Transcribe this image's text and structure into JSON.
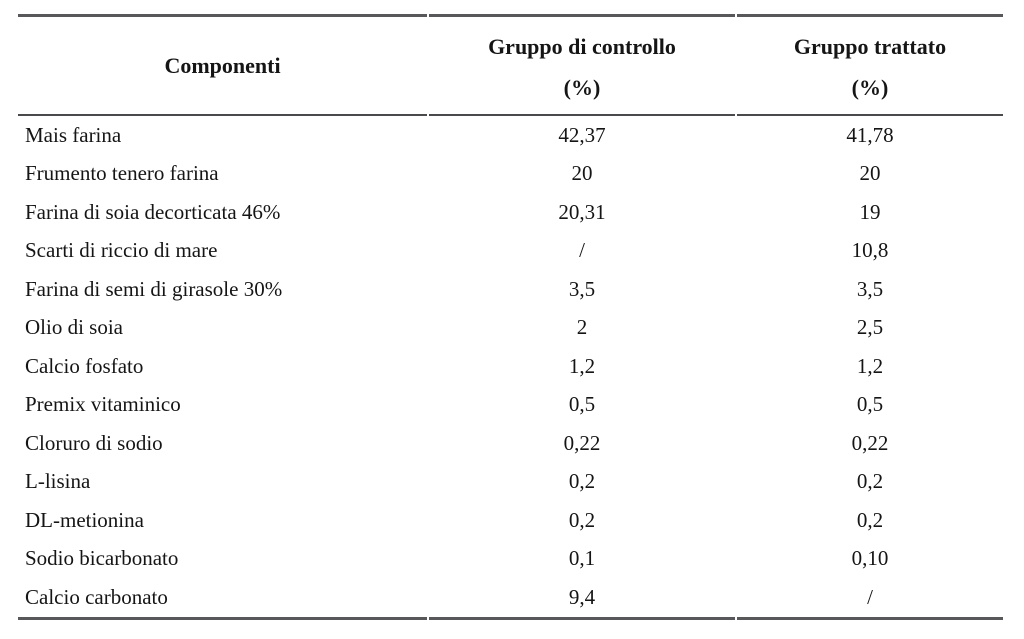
{
  "table": {
    "rule_color": "#58585a",
    "text_color": "#151515",
    "headers": {
      "component": "Componenti",
      "control_line1": "Gruppo di controllo",
      "control_line2": "(%)",
      "treated_line1": "Gruppo trattato",
      "treated_line2": "(%)"
    },
    "rows": [
      {
        "name": "Mais farina",
        "control": "42,37",
        "treated": "41,78"
      },
      {
        "name": "Frumento tenero farina",
        "control": "20",
        "treated": "20"
      },
      {
        "name": "Farina di soia decorticata 46%",
        "control": "20,31",
        "treated": "19"
      },
      {
        "name": "Scarti di riccio di mare",
        "control": "/",
        "treated": "10,8"
      },
      {
        "name": "Farina di semi di girasole 30%",
        "control": "3,5",
        "treated": "3,5"
      },
      {
        "name": "Olio di soia",
        "control": "2",
        "treated": "2,5"
      },
      {
        "name": "Calcio fosfato",
        "control": "1,2",
        "treated": "1,2"
      },
      {
        "name": "Premix vitaminico",
        "control": "0,5",
        "treated": "0,5"
      },
      {
        "name": "Cloruro di sodio",
        "control": "0,22",
        "treated": "0,22"
      },
      {
        "name": "L-lisina",
        "control": "0,2",
        "treated": "0,2"
      },
      {
        "name": "DL-metionina",
        "control": "0,2",
        "treated": "0,2"
      },
      {
        "name": "Sodio bicarbonato",
        "control": "0,1",
        "treated": "0,10"
      },
      {
        "name": "Calcio carbonato",
        "control": "9,4",
        "treated": "/"
      }
    ]
  }
}
